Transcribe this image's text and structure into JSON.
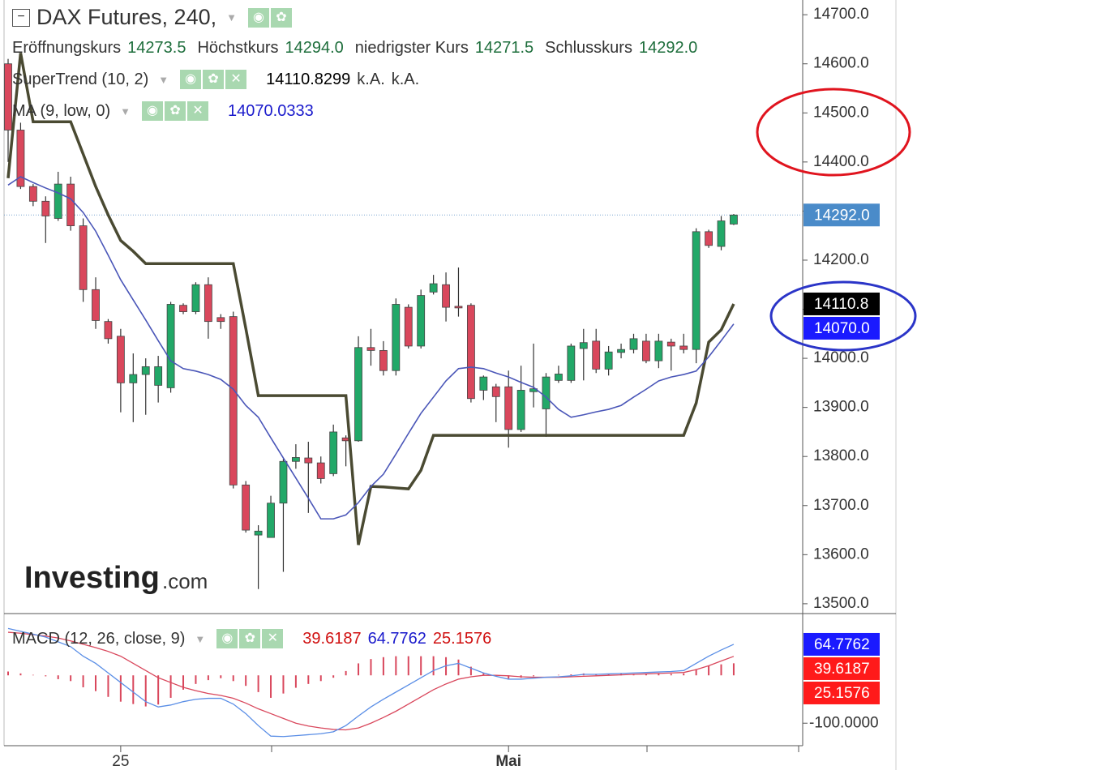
{
  "chart_data": [
    {
      "type": "candlestick",
      "title": "DAX Futures, 240,",
      "readout": [
        {
          "name": "Eröffnungskurs",
          "label": "14273.5"
        },
        {
          "name": "Höchstkurs",
          "label": "14294.0"
        },
        {
          "name": "niedrigster Kurs",
          "label": "14271.5"
        },
        {
          "name": "Schlusskurs",
          "label": "14292.0"
        }
      ],
      "categories": [
        null,
        null,
        null,
        null,
        null,
        null,
        null,
        null,
        null,
        "25",
        null,
        null,
        null,
        null,
        null,
        null,
        null,
        null,
        null,
        null,
        null,
        null,
        null,
        null,
        null,
        null,
        null,
        null,
        null,
        null,
        null,
        null,
        null,
        null,
        null,
        null,
        null,
        null,
        null,
        null,
        "Mai",
        null,
        null,
        null,
        null,
        null,
        null,
        null,
        null,
        null,
        null,
        null,
        null,
        null,
        null,
        null,
        null,
        null,
        null
      ],
      "open": [
        14600,
        14465,
        14350,
        14320,
        14285,
        14355,
        14270,
        14140,
        14075,
        14045,
        13950,
        13967,
        13945,
        13940,
        14108,
        14095,
        14150,
        14083,
        14085,
        13742,
        13640,
        13635,
        13705,
        13790,
        13797,
        13787,
        13765,
        13838,
        13832,
        14022,
        14016,
        13975,
        14104,
        14025,
        14135,
        14150,
        14106,
        14108,
        13935,
        13942,
        13942,
        13855,
        13932,
        13897,
        13955,
        13955,
        14020,
        14035,
        13978,
        14012,
        14018,
        14035,
        13995,
        14033,
        14025,
        14018,
        14258,
        14228,
        14273.5
      ],
      "high": [
        14610,
        14480,
        14355,
        14330,
        14380,
        14370,
        14285,
        14165,
        14080,
        14060,
        14010,
        14000,
        14005,
        14115,
        14112,
        14155,
        14165,
        14090,
        14095,
        13750,
        13660,
        13720,
        13795,
        13825,
        13830,
        13800,
        13865,
        13843,
        14045,
        14060,
        14035,
        14122,
        14110,
        14140,
        14170,
        14175,
        14185,
        14112,
        13965,
        13948,
        13975,
        13985,
        14030,
        13970,
        13985,
        14030,
        14060,
        14060,
        14025,
        14030,
        14050,
        14050,
        14050,
        14040,
        14050,
        14265,
        14262,
        14290,
        14294
      ],
      "low": [
        14400,
        14345,
        14310,
        14235,
        14280,
        14260,
        14115,
        14060,
        14030,
        13890,
        13870,
        13885,
        13910,
        13930,
        14090,
        14090,
        14040,
        14060,
        13735,
        13645,
        13530,
        13635,
        13565,
        13775,
        13685,
        13745,
        13760,
        13780,
        13830,
        13985,
        13965,
        13965,
        14020,
        14020,
        14130,
        14075,
        14085,
        13910,
        13915,
        13870,
        13818,
        13850,
        13900,
        13840,
        13950,
        13950,
        13955,
        13970,
        13965,
        14000,
        14010,
        13990,
        13980,
        13975,
        14010,
        13990,
        14225,
        14220,
        14271.5
      ],
      "close": [
        14465,
        14350,
        14320,
        14290,
        14355,
        14270,
        14140,
        14077,
        14040,
        13950,
        13967,
        13983,
        13983,
        14110,
        14095,
        14150,
        14075,
        14075,
        13742,
        13650,
        13648,
        13705,
        13790,
        13798,
        13787,
        13755,
        13850,
        13832,
        14022,
        14016,
        13975,
        14110,
        14025,
        14128,
        14152,
        14104,
        14103,
        13918,
        13962,
        13922,
        13855,
        13935,
        13938,
        13962,
        13968,
        14025,
        14032,
        13978,
        14013,
        14018,
        14040,
        13995,
        14035,
        14025,
        14018,
        14258,
        14230,
        14280,
        14292
      ],
      "up_color": "#22a868",
      "down_color": "#d9475c",
      "series": [
        {
          "name": "SuperTrend (10, 2)",
          "color": "#4a4a32",
          "readout": "14110.8299",
          "extra": [
            "k.A.",
            "k.A."
          ],
          "values": [
            14367,
            14622,
            14482,
            14482,
            14482,
            14482,
            14416,
            14350,
            14292,
            14240,
            14218,
            14193,
            14193,
            14193,
            14193,
            14193,
            14193,
            14193,
            14193,
            14061,
            13924,
            13924,
            13924,
            13924,
            13924,
            13924,
            13924,
            13924,
            13620,
            13739,
            13738,
            13736,
            13734,
            13772,
            13843,
            13843,
            13843,
            13843,
            13843,
            13843,
            13843,
            13843,
            13843,
            13843,
            13843,
            13843,
            13843,
            13843,
            13843,
            13843,
            13843,
            13843,
            13843,
            13843,
            13843,
            13909,
            14033,
            14058,
            14110.8299
          ]
        },
        {
          "name": "MA (9, low, 0)",
          "color": "#4a56b8",
          "readout": "14070.0333",
          "values": [
            14353,
            14370,
            14358,
            14347,
            14337,
            14325,
            14297,
            14259,
            14210,
            14160,
            14119,
            14078,
            14036,
            13995,
            13979,
            13974,
            13967,
            13957,
            13937,
            13904,
            13880,
            13838,
            13797,
            13756,
            13715,
            13673,
            13673,
            13681,
            13706,
            13739,
            13764,
            13805,
            13847,
            13888,
            13921,
            13954,
            13979,
            13982,
            13979,
            13970,
            13962,
            13951,
            13941,
            13921,
            13896,
            13880,
            13885,
            13891,
            13896,
            13904,
            13921,
            13937,
            13954,
            13962,
            13967,
            13974,
            14003,
            14036,
            14070.0333
          ]
        }
      ],
      "price_tags": [
        {
          "label": "14292.0",
          "color": "#4a8bc9"
        },
        {
          "label": "14110.8",
          "color": "#000000"
        },
        {
          "label": "14070.0",
          "color": "#1a1aff"
        }
      ],
      "ylim": [
        13480,
        14730
      ],
      "yticks": [
        {
          "value": 13500,
          "label": "13500.0"
        },
        {
          "value": 13600,
          "label": "13600.0"
        },
        {
          "value": 13700,
          "label": "13700.0"
        },
        {
          "value": 13800,
          "label": "13800.0"
        },
        {
          "value": 13900,
          "label": "13900.0"
        },
        {
          "value": 14000,
          "label": "14000.0"
        },
        {
          "value": 14100,
          "label": "14100.0"
        },
        {
          "value": 14200,
          "label": "14200.0"
        },
        {
          "value": 14300,
          "label": "14300.0"
        },
        {
          "value": 14400,
          "label": "14400.0"
        },
        {
          "value": 14500,
          "label": "14500.0"
        },
        {
          "value": 14600,
          "label": "14600.0"
        },
        {
          "value": 14700,
          "label": "14700.0"
        }
      ],
      "watermark": [
        "Investing",
        ".com"
      ]
    },
    {
      "type": "macd",
      "title": "MACD (12, 26, close, 9)",
      "series": [
        {
          "name": "Signal",
          "color": "#d9475c",
          "readout": "39.6187",
          "values": [
            90,
            88,
            85,
            82,
            78,
            72,
            65,
            58,
            50,
            40,
            25,
            10,
            -5,
            -15,
            -25,
            -32,
            -38,
            -42,
            -48,
            -58,
            -70,
            -80,
            -90,
            -100,
            -106,
            -110,
            -113,
            -114,
            -110,
            -100,
            -88,
            -75,
            -60,
            -45,
            -30,
            -18,
            -8,
            -3,
            0,
            0,
            -1,
            -3,
            -4,
            -4,
            -4,
            -3,
            -2,
            -1,
            0,
            1,
            2,
            3,
            4,
            5,
            6,
            12,
            20,
            30,
            39.6187
          ]
        },
        {
          "name": "MACD",
          "color": "#5a8ee6",
          "readout": "64.7762",
          "values": [
            98,
            92,
            86,
            80,
            70,
            60,
            40,
            25,
            5,
            -15,
            -35,
            -55,
            -66,
            -62,
            -55,
            -50,
            -48,
            -48,
            -60,
            -80,
            -105,
            -127,
            -128,
            -126,
            -124,
            -122,
            -118,
            -105,
            -85,
            -66,
            -50,
            -35,
            -20,
            -5,
            10,
            20,
            25,
            15,
            5,
            -2,
            -8,
            -8,
            -6,
            -4,
            -3,
            -1,
            2,
            2,
            3,
            4,
            5,
            6,
            7,
            8,
            10,
            25,
            40,
            53,
            64.7762
          ]
        }
      ],
      "histogram": {
        "color": "#d9475c",
        "readout": "25.1576",
        "values": [
          8,
          4,
          1,
          -2,
          -8,
          -12,
          -25,
          -33,
          -45,
          -55,
          -60,
          -65,
          -61,
          -47,
          -30,
          -18,
          -10,
          -6,
          -12,
          -22,
          -35,
          -47,
          -38,
          -26,
          -18,
          -12,
          -5,
          9,
          25,
          34,
          38,
          40,
          40,
          40,
          40,
          38,
          33,
          18,
          5,
          -2,
          -7,
          -5,
          -2,
          0,
          1,
          2,
          4,
          3,
          3,
          3,
          3,
          3,
          3,
          3,
          4,
          13,
          20,
          23,
          25.1576
        ]
      },
      "tags": [
        {
          "label": "64.7762",
          "color": "#1a1aff"
        },
        {
          "label": "39.6187",
          "color": "#ff1a1a"
        },
        {
          "label": "25.1576",
          "color": "#ff1a1a"
        }
      ],
      "ylim": [
        -147,
        124
      ],
      "yticks": [
        {
          "value": -100,
          "label": "-100.0000"
        }
      ]
    }
  ]
}
